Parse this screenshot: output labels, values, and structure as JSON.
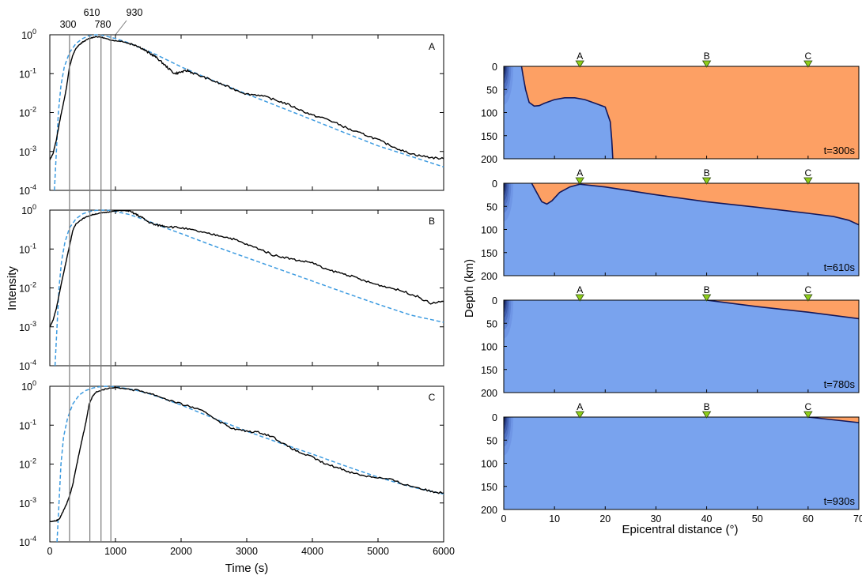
{
  "colors": {
    "observed": "#000000",
    "model": "#3d9be0",
    "marker_line": "#7a7a7a",
    "region_blue": "#79a3ee",
    "region_orange": "#fda064",
    "boundary": "#14185a",
    "station_fill": "#8fce1a"
  },
  "chart_data": [
    {
      "type": "line",
      "panel": "A",
      "xlim": [
        0,
        6000
      ],
      "ylim": [
        0.0001,
        1
      ],
      "yscale": "log",
      "series": [],
      "observed": [
        [
          0,
          0.0006
        ],
        [
          50,
          0.0009
        ],
        [
          100,
          0.002
        ],
        [
          150,
          0.006
        ],
        [
          200,
          0.015
        ],
        [
          250,
          0.04
        ],
        [
          300,
          0.15
        ],
        [
          350,
          0.3
        ],
        [
          400,
          0.45
        ],
        [
          450,
          0.55
        ],
        [
          500,
          0.65
        ],
        [
          600,
          0.8
        ],
        [
          700,
          0.9
        ],
        [
          800,
          0.85
        ],
        [
          900,
          0.75
        ],
        [
          1000,
          0.7
        ],
        [
          1100,
          0.68
        ],
        [
          1200,
          0.6
        ],
        [
          1300,
          0.55
        ],
        [
          1400,
          0.45
        ],
        [
          1500,
          0.35
        ],
        [
          1600,
          0.28
        ],
        [
          1700,
          0.2
        ],
        [
          1800,
          0.14
        ],
        [
          1900,
          0.1
        ],
        [
          2000,
          0.11
        ],
        [
          2100,
          0.12
        ],
        [
          2200,
          0.1
        ],
        [
          2400,
          0.075
        ],
        [
          2600,
          0.055
        ],
        [
          2800,
          0.04
        ],
        [
          3000,
          0.03
        ],
        [
          3200,
          0.028
        ],
        [
          3400,
          0.022
        ],
        [
          3600,
          0.017
        ],
        [
          3800,
          0.012
        ],
        [
          4000,
          0.0085
        ],
        [
          4200,
          0.007
        ],
        [
          4400,
          0.005
        ],
        [
          4600,
          0.0035
        ],
        [
          4800,
          0.0027
        ],
        [
          5000,
          0.002
        ],
        [
          5200,
          0.0014
        ],
        [
          5400,
          0.001
        ],
        [
          5600,
          0.0008
        ],
        [
          5800,
          0.0007
        ],
        [
          6000,
          0.00065
        ]
      ],
      "model": [
        [
          70,
          0.0001
        ],
        [
          100,
          0.001
        ],
        [
          130,
          0.01
        ],
        [
          170,
          0.05
        ],
        [
          220,
          0.15
        ],
        [
          300,
          0.35
        ],
        [
          400,
          0.6
        ],
        [
          500,
          0.8
        ],
        [
          600,
          0.95
        ],
        [
          700,
          1
        ],
        [
          800,
          0.97
        ],
        [
          900,
          0.88
        ],
        [
          1000,
          0.8
        ],
        [
          1200,
          0.62
        ],
        [
          1400,
          0.45
        ],
        [
          1600,
          0.32
        ],
        [
          1800,
          0.22
        ],
        [
          2000,
          0.15
        ],
        [
          2500,
          0.065
        ],
        [
          3000,
          0.03
        ],
        [
          3500,
          0.014
        ],
        [
          4000,
          0.0065
        ],
        [
          4500,
          0.003
        ],
        [
          5000,
          0.0014
        ],
        [
          5500,
          0.00075
        ],
        [
          6000,
          0.0004
        ]
      ]
    },
    {
      "type": "line",
      "panel": "B",
      "xlim": [
        0,
        6000
      ],
      "ylim": [
        0.0001,
        1
      ],
      "yscale": "log",
      "observed": [
        [
          0,
          0.001
        ],
        [
          50,
          0.0015
        ],
        [
          100,
          0.003
        ],
        [
          150,
          0.008
        ],
        [
          200,
          0.02
        ],
        [
          250,
          0.05
        ],
        [
          300,
          0.12
        ],
        [
          350,
          0.3
        ],
        [
          400,
          0.45
        ],
        [
          500,
          0.6
        ],
        [
          600,
          0.72
        ],
        [
          700,
          0.8
        ],
        [
          800,
          0.85
        ],
        [
          900,
          0.9
        ],
        [
          1000,
          0.95
        ],
        [
          1100,
          0.98
        ],
        [
          1200,
          0.95
        ],
        [
          1300,
          0.8
        ],
        [
          1400,
          0.65
        ],
        [
          1500,
          0.5
        ],
        [
          1600,
          0.42
        ],
        [
          1700,
          0.4
        ],
        [
          1800,
          0.38
        ],
        [
          2000,
          0.35
        ],
        [
          2200,
          0.3
        ],
        [
          2400,
          0.25
        ],
        [
          2600,
          0.22
        ],
        [
          2800,
          0.18
        ],
        [
          3000,
          0.13
        ],
        [
          3200,
          0.1
        ],
        [
          3400,
          0.07
        ],
        [
          3600,
          0.06
        ],
        [
          3800,
          0.05
        ],
        [
          4000,
          0.045
        ],
        [
          4200,
          0.03
        ],
        [
          4400,
          0.025
        ],
        [
          4600,
          0.02
        ],
        [
          4800,
          0.015
        ],
        [
          5000,
          0.012
        ],
        [
          5200,
          0.01
        ],
        [
          5400,
          0.008
        ],
        [
          5600,
          0.006
        ],
        [
          5800,
          0.004
        ],
        [
          6000,
          0.0045
        ]
      ],
      "model": [
        [
          80,
          0.0001
        ],
        [
          110,
          0.001
        ],
        [
          140,
          0.01
        ],
        [
          180,
          0.05
        ],
        [
          230,
          0.15
        ],
        [
          300,
          0.35
        ],
        [
          400,
          0.6
        ],
        [
          500,
          0.8
        ],
        [
          600,
          0.92
        ],
        [
          700,
          0.98
        ],
        [
          800,
          1
        ],
        [
          900,
          0.98
        ],
        [
          1000,
          0.92
        ],
        [
          1200,
          0.78
        ],
        [
          1400,
          0.6
        ],
        [
          1600,
          0.45
        ],
        [
          1800,
          0.33
        ],
        [
          2000,
          0.25
        ],
        [
          2500,
          0.12
        ],
        [
          3000,
          0.06
        ],
        [
          3500,
          0.03
        ],
        [
          4000,
          0.015
        ],
        [
          4500,
          0.0075
        ],
        [
          5000,
          0.0038
        ],
        [
          5500,
          0.002
        ],
        [
          6000,
          0.0013
        ]
      ]
    },
    {
      "type": "line",
      "panel": "C",
      "xlim": [
        0,
        6000
      ],
      "ylim": [
        0.0001,
        1
      ],
      "yscale": "log",
      "observed": [
        [
          0,
          0.00033
        ],
        [
          100,
          0.00035
        ],
        [
          150,
          0.0004
        ],
        [
          200,
          0.0006
        ],
        [
          250,
          0.0009
        ],
        [
          300,
          0.0015
        ],
        [
          350,
          0.003
        ],
        [
          400,
          0.008
        ],
        [
          450,
          0.02
        ],
        [
          500,
          0.05
        ],
        [
          550,
          0.12
        ],
        [
          600,
          0.35
        ],
        [
          650,
          0.55
        ],
        [
          700,
          0.7
        ],
        [
          800,
          0.8
        ],
        [
          900,
          0.9
        ],
        [
          1000,
          0.92
        ],
        [
          1200,
          0.85
        ],
        [
          1400,
          0.75
        ],
        [
          1600,
          0.6
        ],
        [
          1800,
          0.45
        ],
        [
          2000,
          0.35
        ],
        [
          2200,
          0.28
        ],
        [
          2400,
          0.2
        ],
        [
          2600,
          0.12
        ],
        [
          2800,
          0.08
        ],
        [
          3000,
          0.07
        ],
        [
          3200,
          0.065
        ],
        [
          3400,
          0.05
        ],
        [
          3600,
          0.03
        ],
        [
          3800,
          0.02
        ],
        [
          4000,
          0.015
        ],
        [
          4200,
          0.01
        ],
        [
          4400,
          0.008
        ],
        [
          4600,
          0.006
        ],
        [
          4800,
          0.005
        ],
        [
          5000,
          0.0045
        ],
        [
          5200,
          0.004
        ],
        [
          5400,
          0.003
        ],
        [
          5600,
          0.0025
        ],
        [
          5800,
          0.002
        ],
        [
          6000,
          0.0018
        ]
      ],
      "model": [
        [
          110,
          0.0001
        ],
        [
          140,
          0.001
        ],
        [
          170,
          0.01
        ],
        [
          210,
          0.05
        ],
        [
          270,
          0.15
        ],
        [
          350,
          0.35
        ],
        [
          450,
          0.6
        ],
        [
          550,
          0.78
        ],
        [
          650,
          0.9
        ],
        [
          750,
          0.97
        ],
        [
          850,
          1
        ],
        [
          950,
          0.98
        ],
        [
          1100,
          0.92
        ],
        [
          1300,
          0.8
        ],
        [
          1500,
          0.65
        ],
        [
          1700,
          0.5
        ],
        [
          2000,
          0.33
        ],
        [
          2500,
          0.15
        ],
        [
          3000,
          0.07
        ],
        [
          3500,
          0.035
        ],
        [
          4000,
          0.018
        ],
        [
          4500,
          0.009
        ],
        [
          5000,
          0.0046
        ],
        [
          5500,
          0.0026
        ],
        [
          6000,
          0.0017
        ]
      ]
    },
    {
      "type": "area",
      "panel": "t=300s",
      "xlim": [
        0,
        70
      ],
      "ylim": [
        0,
        200
      ],
      "boundary": [
        [
          3.5,
          0
        ],
        [
          3.8,
          20
        ],
        [
          4.3,
          50
        ],
        [
          5,
          78
        ],
        [
          6,
          86
        ],
        [
          7,
          85
        ],
        [
          8,
          80
        ],
        [
          10,
          72
        ],
        [
          12,
          68
        ],
        [
          14,
          68
        ],
        [
          16,
          72
        ],
        [
          18,
          80
        ],
        [
          20,
          88
        ],
        [
          21,
          120
        ],
        [
          21.3,
          160
        ],
        [
          21.5,
          200
        ]
      ]
    },
    {
      "type": "area",
      "panel": "t=610s",
      "xlim": [
        0,
        70
      ],
      "ylim": [
        0,
        200
      ],
      "boundary": [
        [
          5.5,
          0
        ],
        [
          6.5,
          20
        ],
        [
          7.5,
          40
        ],
        [
          8.5,
          45
        ],
        [
          9.5,
          38
        ],
        [
          11,
          20
        ],
        [
          13,
          8
        ],
        [
          15,
          2
        ],
        [
          20,
          8
        ],
        [
          30,
          25
        ],
        [
          40,
          40
        ],
        [
          50,
          52
        ],
        [
          60,
          65
        ],
        [
          65,
          72
        ],
        [
          68,
          80
        ],
        [
          70,
          90
        ]
      ]
    },
    {
      "type": "area",
      "panel": "t=780s",
      "xlim": [
        0,
        70
      ],
      "ylim": [
        0,
        200
      ],
      "boundary": [
        [
          40,
          0
        ],
        [
          50,
          14
        ],
        [
          60,
          26
        ],
        [
          70,
          40
        ]
      ]
    },
    {
      "type": "area",
      "panel": "t=930s",
      "xlim": [
        0,
        70
      ],
      "ylim": [
        0,
        200
      ],
      "boundary": [
        [
          60,
          0
        ],
        [
          65,
          6
        ],
        [
          70,
          12
        ]
      ]
    }
  ],
  "left_panels": {
    "panels": [
      {
        "label": "A"
      },
      {
        "label": "B"
      },
      {
        "label": "C"
      }
    ],
    "y_tick_exponents": [
      "0",
      "-1",
      "-2",
      "-3",
      "-4"
    ],
    "y_tick_base": "10",
    "x_ticks": [
      "0",
      "1000",
      "2000",
      "3000",
      "4000",
      "5000",
      "6000"
    ],
    "xlabel": "Time (s)",
    "ylabel": "Intensity",
    "marker_labels": [
      "300",
      "610",
      "780",
      "930"
    ],
    "marker_times": [
      300,
      610,
      780,
      930
    ]
  },
  "right_panels": {
    "panels": [
      {
        "time_label": "t=300s"
      },
      {
        "time_label": "t=610s"
      },
      {
        "time_label": "t=780s"
      },
      {
        "time_label": "t=930s"
      }
    ],
    "stations": [
      {
        "label": "A",
        "x": 15
      },
      {
        "label": "B",
        "x": 40
      },
      {
        "label": "C",
        "x": 60
      }
    ],
    "y_ticks": [
      "0",
      "50",
      "100",
      "150",
      "200"
    ],
    "x_ticks": [
      "0",
      "10",
      "20",
      "30",
      "40",
      "50",
      "60",
      "70"
    ],
    "xlabel": "Epicentral distance (°)",
    "ylabel": "Depth (km)"
  }
}
